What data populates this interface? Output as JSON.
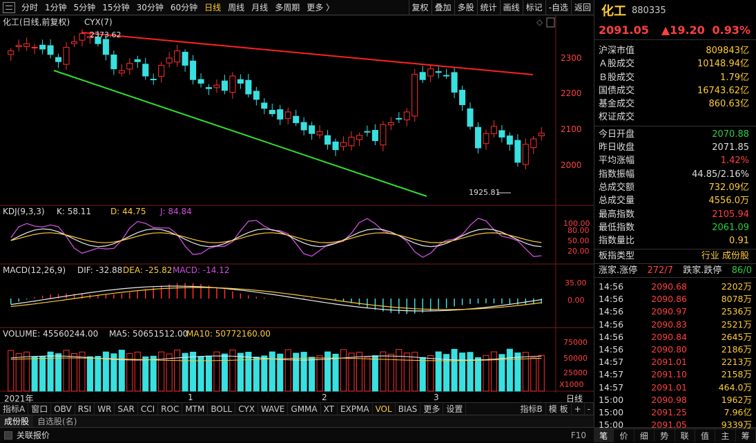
{
  "topbar": {
    "timeframes": [
      "分时",
      "1分钟",
      "5分钟",
      "15分钟",
      "30分钟",
      "60分钟",
      "日线",
      "周线",
      "月线",
      "多周期",
      "更多 〉"
    ],
    "active_timeframe": "日线",
    "tools": [
      "复权",
      "叠加",
      "多股",
      "统计",
      "画线",
      "标记",
      "-自选",
      "返回"
    ]
  },
  "chart": {
    "title": "化工(日线,前复权)",
    "overlay": "CYX(7)",
    "high_label": "2373.62",
    "low_label": "1925.81",
    "y_ticks": [
      "2300",
      "2200",
      "2100",
      "2000"
    ],
    "x_labels": [
      "2021年",
      "1",
      "2",
      "3"
    ],
    "x_unit": "日线"
  },
  "kdj": {
    "label": "KDJ(9,3,3)",
    "k": "K: 58.11",
    "d": "D: 44.75",
    "j": "J: 84.84",
    "ticks": [
      "100.00",
      "80.00",
      "50.00",
      "20.00"
    ]
  },
  "macd": {
    "label": "MACD(12,26,9)",
    "dif": "DIF: -32.88",
    "dea": "DEA: -25.82",
    "macd": "MACD: -14.12",
    "ticks": [
      "35.00",
      "0.00"
    ]
  },
  "volume": {
    "label": "VOLUME: 45560244.00",
    "ma5": "MA5: 50651512.00",
    "ma10": "MA10: 50772160.00",
    "ticks": [
      "75000",
      "50000",
      "25000",
      "X1000"
    ]
  },
  "indicator_tabs": [
    "指标A",
    "窗口",
    "OBV",
    "RSI",
    "WR",
    "SAR",
    "CCI",
    "ROC",
    "MTM",
    "BOLL",
    "CYX",
    "WAVE",
    "GMMA",
    "XT",
    "EXPMA",
    "VOL",
    "BIAS",
    "更多",
    "设置"
  ],
  "active_indicator": "VOL",
  "indicator_tabs_right": [
    "指标B",
    "模 板",
    "+",
    "-"
  ],
  "block_tabs": [
    "成份股",
    "自选股(名)"
  ],
  "status_text": "关联报价",
  "status_right": "F10",
  "panel": {
    "name": "化工",
    "code": "880335",
    "price": "2091.05",
    "change": "▲19.20",
    "pct": "0.93%",
    "market": [
      {
        "k": "沪深市值",
        "v": "809843亿"
      },
      {
        "k": "Ａ股成交",
        "v": "10148.94亿"
      },
      {
        "k": "Ｂ股成交",
        "v": "1.79亿"
      },
      {
        "k": "国债成交",
        "v": "16743.62亿"
      },
      {
        "k": "基金成交",
        "v": "860.63亿"
      },
      {
        "k": "权证成交",
        "v": ""
      }
    ],
    "stats": [
      {
        "k": "今日开盘",
        "v": "2070.88",
        "c": "#2ecc40"
      },
      {
        "k": "昨日收盘",
        "v": "2071.85",
        "c": "#dddddd"
      },
      {
        "k": "平均涨幅",
        "v": "1.42%",
        "c": "#ff4040"
      },
      {
        "k": "指数振幅",
        "v": "44.85/2.16%",
        "c": "#dddddd"
      },
      {
        "k": "总成交额",
        "v": "732.09亿",
        "c": "#ffcc33"
      },
      {
        "k": "总成交量",
        "v": "4556.0万",
        "c": "#ffcc33"
      },
      {
        "k": "最高指数",
        "v": "2105.94",
        "c": "#ff4040"
      },
      {
        "k": "最低指数",
        "v": "2061.09",
        "c": "#2ecc40"
      },
      {
        "k": "指数量比",
        "v": "0.91",
        "c": "#ffcc33"
      }
    ],
    "board_type_label": "板指类型",
    "board_type_value": "行业 成份股",
    "updown_label": "涨家.涨停",
    "updown_value": "272/7",
    "down_label": "跌家.跌停",
    "down_value": "86/0",
    "ticks": [
      {
        "t": "14:56",
        "p": "2090.68",
        "v": "2202万"
      },
      {
        "t": "14:56",
        "p": "2090.86",
        "v": "8078万"
      },
      {
        "t": "14:56",
        "p": "2090.97",
        "v": "2536万"
      },
      {
        "t": "14:56",
        "p": "2090.83",
        "v": "2521万"
      },
      {
        "t": "14:56",
        "p": "2090.84",
        "v": "2645万"
      },
      {
        "t": "14:56",
        "p": "2090.80",
        "v": "2186万"
      },
      {
        "t": "14:57",
        "p": "2091.01",
        "v": "2213万"
      },
      {
        "t": "14:57",
        "p": "2091.10",
        "v": "2158万"
      },
      {
        "t": "14:57",
        "p": "2091.01",
        "v": "464.0万"
      },
      {
        "t": "15:00",
        "p": "2090.98",
        "v": "1962万"
      },
      {
        "t": "15:00",
        "p": "2091.25",
        "v": "7.96亿"
      },
      {
        "t": "15:00",
        "p": "2091.05",
        "v": "9339万"
      }
    ],
    "bottom_tabs": [
      "笔",
      "价",
      "细",
      "势",
      "联",
      "值",
      "主",
      "筹"
    ]
  }
}
